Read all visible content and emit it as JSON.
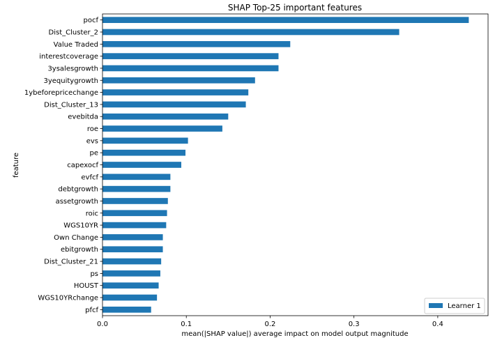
{
  "chart_data": {
    "type": "bar",
    "orientation": "horizontal",
    "title": "SHAP Top-25 important features",
    "xlabel": "mean(|SHAP value|) average impact on model output magnitude",
    "ylabel": "feature",
    "xlim": [
      0,
      0.46
    ],
    "xticks": [
      0.0,
      0.1,
      0.2,
      0.3,
      0.4
    ],
    "xtick_labels": [
      "0.0",
      "0.1",
      "0.2",
      "0.3",
      "0.4"
    ],
    "grid": false,
    "legend": {
      "position": "bottom-right"
    },
    "categories": [
      "pocf",
      "Dist_Cluster_2",
      "Value Traded",
      "interestcoverage",
      "3ysalesgrowth",
      "3yequitygrowth",
      "1ybeforepricechange",
      "Dist_Cluster_13",
      "evebitda",
      "roe",
      "evs",
      "pe",
      "capexocf",
      "evfcf",
      "debtgrowth",
      "assetgrowth",
      "roic",
      "WGS10YR",
      "Own Change",
      "ebitgrowth",
      "Dist_Cluster_21",
      "ps",
      "HOUST",
      "WGS10YRchange",
      "pfcf"
    ],
    "series": [
      {
        "name": "Learner 1",
        "color": "#1f77b4",
        "values": [
          0.437,
          0.354,
          0.224,
          0.21,
          0.21,
          0.182,
          0.174,
          0.171,
          0.15,
          0.143,
          0.102,
          0.099,
          0.094,
          0.081,
          0.081,
          0.078,
          0.077,
          0.076,
          0.072,
          0.072,
          0.07,
          0.069,
          0.067,
          0.065,
          0.058
        ]
      }
    ]
  }
}
